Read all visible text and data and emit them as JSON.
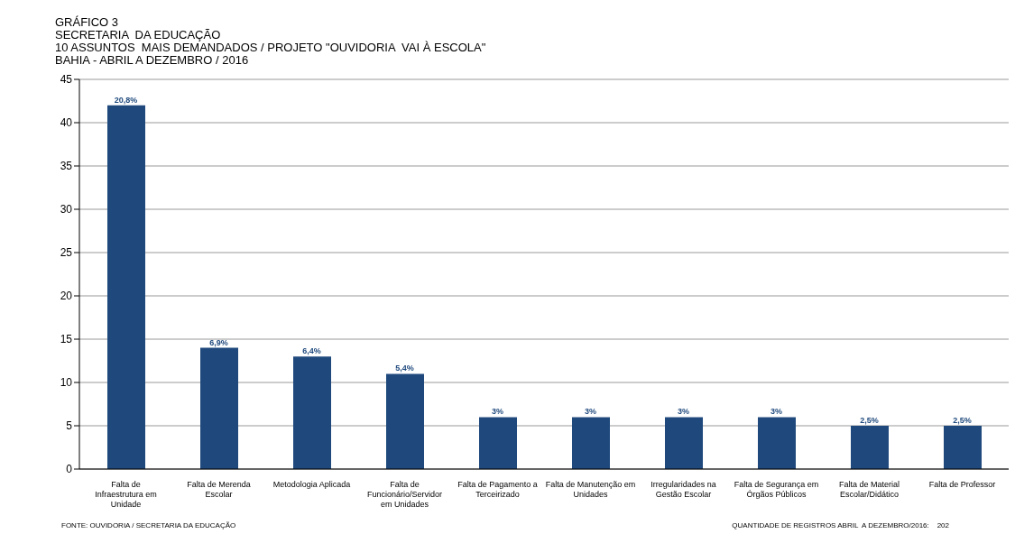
{
  "chart_data": {
    "type": "bar",
    "title": "GRÁFICO 3",
    "subtitle": "SECRETARIA  DA EDUCAÇÃO\n10 ASSUNTOS  MAIS DEMANDADOS / PROJETO \"OUVIDORIA  VAI À ESCOLA\"\nBAHIA - ABRIL A DEZEMBRO / 2016",
    "categories": [
      "Falta de Infraestrutura em Unidade",
      "Falta de Merenda Escolar",
      "Metodologia Aplicada",
      "Falta de Funcionário/Servidor em Unidades",
      "Falta de Pagamento a Terceirizado",
      "Falta de Manutenção em Unidades",
      "Irregularidades na Gestão Escolar",
      "Falta de Segurança em Órgãos Públicos",
      "Falta de Material Escolar/Didático",
      "Falta de Professor"
    ],
    "values": [
      42,
      14,
      13,
      11,
      6,
      6,
      6,
      6,
      5,
      5
    ],
    "color": "#1f497d",
    "ylim": [
      0,
      45
    ],
    "yticks": [
      0,
      5,
      10,
      15,
      20,
      25,
      30,
      35,
      40,
      45
    ],
    "grid": "y",
    "annotations": [
      {
        "text": "20,8%",
        "x": "Falta de Infraestrutura em Unidade",
        "y": 42
      },
      {
        "text": "6,9%",
        "x": "Falta de Merenda Escolar",
        "y": 14
      },
      {
        "text": "6,4%",
        "x": "Metodologia Aplicada",
        "y": 13
      },
      {
        "text": "5,4%",
        "x": "Falta de Funcionário/Servidor em Unidades",
        "y": 11
      },
      {
        "text": "3%",
        "x": "Falta de Pagamento a Terceirizado",
        "y": 6
      },
      {
        "text": "3%",
        "x": "Falta de Manutenção em Unidades",
        "y": 6
      },
      {
        "text": "3%",
        "x": "Irregularidades na Gestão Escolar",
        "y": 6
      },
      {
        "text": "3%",
        "x": "Falta de Segurança em Órgãos Públicos",
        "y": 6
      },
      {
        "text": "2,5%",
        "x": "Falta de Material Escolar/Didático",
        "y": 5
      },
      {
        "text": "2,5%",
        "x": "Falta de Professor",
        "y": 5
      },
      "FONTE: OUVIDORIA / SECRETARIA DA EDUCAÇÃO",
      "QUANTIDADE DE REGISTROS ABRIL  A DEZEMBRO/2016:    202"
    ]
  }
}
